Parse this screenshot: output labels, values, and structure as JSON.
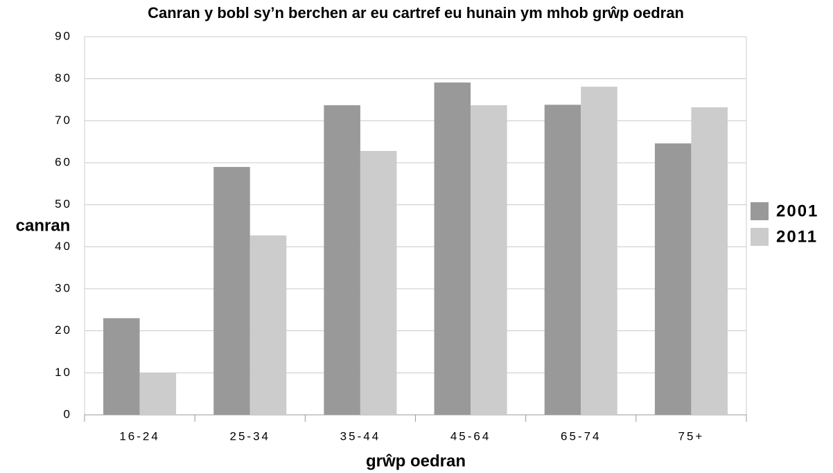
{
  "chart_data": {
    "type": "bar",
    "title": "Canran y bobl sy’n berchen ar eu cartref eu hunain ym mhob grŵp oedran",
    "x_label": "grŵp oedran",
    "y_label": "canran",
    "categories": [
      "16-24",
      "25-34",
      "35-44",
      "45-64",
      "65-74",
      "75+"
    ],
    "series": [
      {
        "name": "2001",
        "color": "#999999",
        "values": [
          23,
          59,
          73.7,
          79.1,
          73.8,
          64.6
        ]
      },
      {
        "name": "2011",
        "color": "#cccccc",
        "values": [
          10,
          42.7,
          62.8,
          73.7,
          78.1,
          73.2
        ]
      }
    ],
    "ylim": [
      0,
      90
    ],
    "yticks": [
      0,
      10,
      20,
      30,
      40,
      50,
      60,
      70,
      80,
      90
    ],
    "grid": true,
    "legend": "right"
  }
}
